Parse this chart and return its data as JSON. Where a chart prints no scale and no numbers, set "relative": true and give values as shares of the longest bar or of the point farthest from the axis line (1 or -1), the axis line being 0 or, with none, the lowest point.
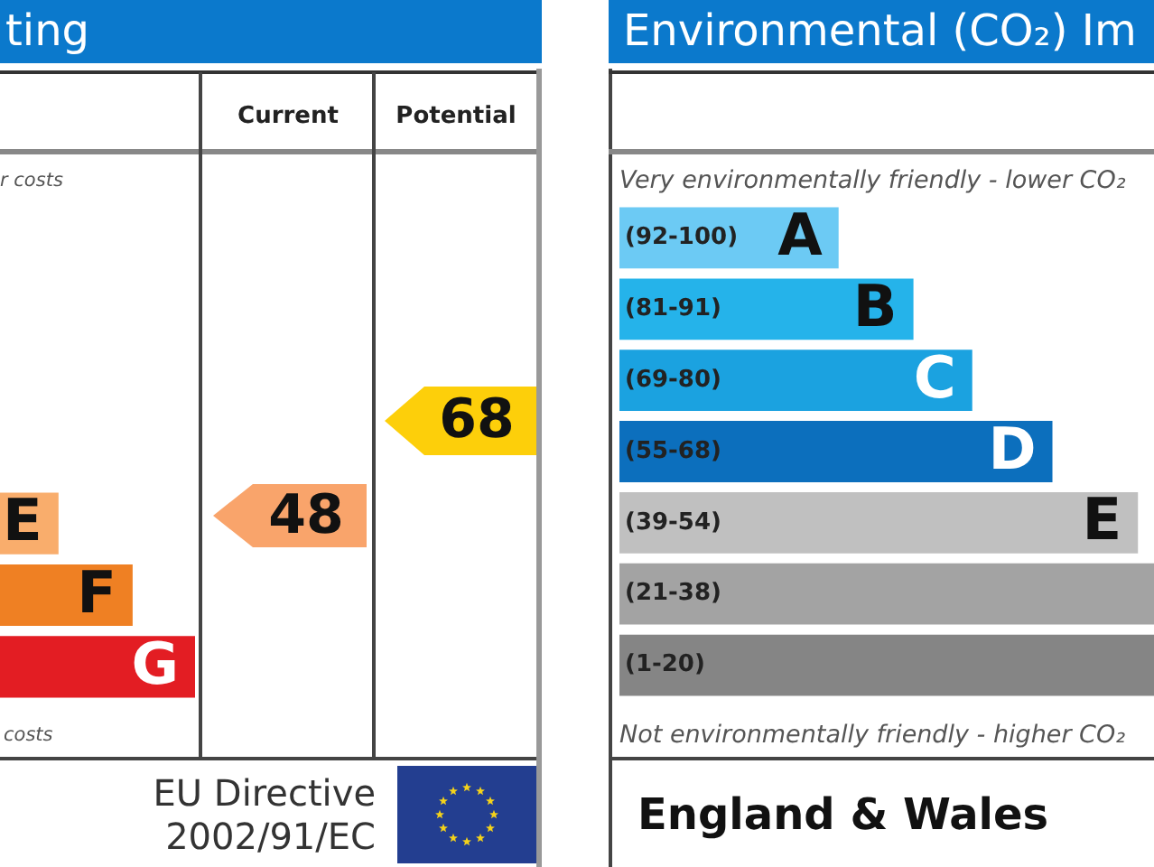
{
  "chart_data": [
    {
      "type": "bar",
      "orientation": "horizontal",
      "relative": true,
      "title": "ting",
      "categories": [
        null,
        null,
        null
      ],
      "values": [
        0.3,
        0.68,
        1
      ],
      "colors": [
        "#f9ad6c",
        "#ef8023",
        "#e31d23"
      ],
      "annotations": [
        "r costs",
        "costs",
        "Current",
        "Potential",
        "48",
        "68",
        "EU Directive 2002/91/EC",
        {
          "text": "E",
          "x": 0.3
        },
        {
          "text": "F",
          "x": 0.68
        },
        {
          "text": "G",
          "x": 1
        }
      ]
    },
    {
      "type": "bar",
      "orientation": "horizontal",
      "relative": true,
      "title": "Environmental (CO₂) Im",
      "categories": [
        "(92-100)",
        "(81-91)",
        "(69-80)",
        "(55-68)",
        "(39-54)",
        "(21-38)",
        "(1-20)"
      ],
      "values": [
        0.41,
        0.55,
        0.66,
        0.81,
        0.97,
        1,
        1
      ],
      "colors": [
        "#6ccaf4",
        "#25b3ea",
        "#1ba2e0",
        "#0c6fbd",
        "#c0c0c0",
        "#a3a3a3",
        "#858585"
      ],
      "annotations": [
        "Very environmentally friendly - lower CO₂",
        "Not environmentally friendly - higher CO₂",
        "England & Wales",
        {
          "text": "A",
          "x": 0.41,
          "y": "(92-100)"
        },
        {
          "text": "B",
          "x": 0.55,
          "y": "(81-91)"
        },
        {
          "text": "C",
          "x": 0.66,
          "y": "(69-80)"
        },
        {
          "text": "D",
          "x": 0.81,
          "y": "(55-68)"
        },
        {
          "text": "E",
          "x": 0.97,
          "y": "(39-54)"
        }
      ]
    }
  ]
}
